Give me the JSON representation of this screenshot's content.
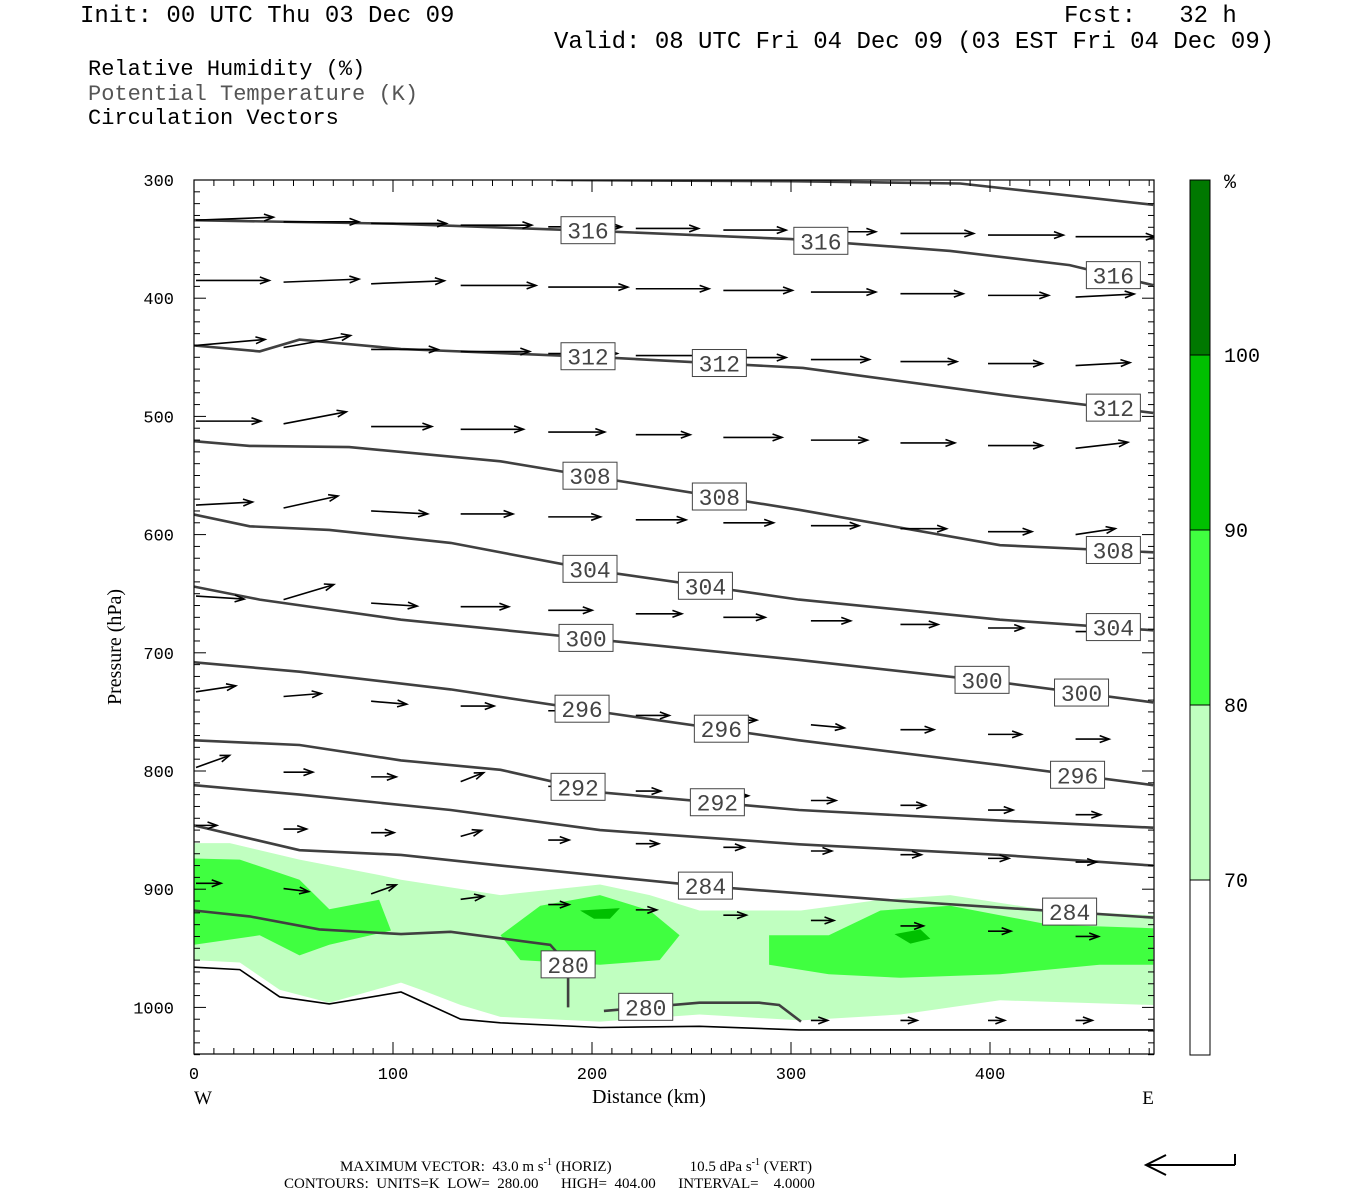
{
  "header": {
    "init": "Init: 00 UTC Thu 03 Dec 09",
    "fcst": "Fcst:   32 h",
    "valid": "Valid: 08 UTC Fri 04 Dec 09 (03 EST Fri 04 Dec 09)"
  },
  "legend": {
    "rh": "Relative Humidity (%)",
    "theta": "Potential Temperature (K)",
    "vectors": "Circulation Vectors"
  },
  "footer": {
    "max_vector_label": "MAXIMUM VECTOR:",
    "horiz": "43.0 m s",
    "horiz_tag": "(HORIZ)",
    "vert": "10.5 dPa s",
    "vert_tag": "(VERT)",
    "exp": "-1",
    "contours": "CONTOURS:  UNITS=K  LOW=  280.00      HIGH=  404.00      INTERVAL=    4.0000"
  },
  "chart_data": {
    "type": "cross-section",
    "xlabel": "Distance (km)",
    "ylabel": "Pressure (hPa)",
    "xlim": [
      0,
      482
    ],
    "ylim": [
      1040,
      300
    ],
    "xticks": [
      0,
      100,
      200,
      300,
      400
    ],
    "yticks": [
      300,
      400,
      500,
      600,
      700,
      800,
      900,
      1000
    ],
    "x_end_labels": {
      "left": "W",
      "right": "E"
    },
    "colorbar": {
      "unit": "%",
      "levels": [
        70,
        80,
        90,
        100
      ],
      "colors": [
        "#ffffff",
        "#c0ffc0",
        "#40ff40",
        "#00c000",
        "#007800"
      ]
    },
    "rh_regions": [
      {
        "level": 70,
        "points": [
          [
            0,
            861
          ],
          [
            18,
            861
          ],
          [
            53,
            875
          ],
          [
            93,
            888
          ],
          [
            104,
            892
          ],
          [
            154,
            905
          ],
          [
            204,
            896
          ],
          [
            229,
            905
          ],
          [
            254,
            918
          ],
          [
            305,
            918
          ],
          [
            345,
            909
          ],
          [
            380,
            905
          ],
          [
            430,
            918
          ],
          [
            482,
            922
          ],
          [
            482,
            998
          ],
          [
            405,
            994
          ],
          [
            355,
            1006
          ],
          [
            305,
            1011
          ],
          [
            254,
            1006
          ],
          [
            204,
            1012
          ],
          [
            154,
            1008
          ],
          [
            134,
            998
          ],
          [
            114,
            985
          ],
          [
            104,
            979
          ],
          [
            68,
            996
          ],
          [
            43,
            985
          ],
          [
            23,
            962
          ],
          [
            0,
            960
          ]
        ]
      },
      {
        "level": 80,
        "points": [
          [
            0,
            874
          ],
          [
            23,
            875
          ],
          [
            53,
            892
          ],
          [
            68,
            917
          ],
          [
            93,
            909
          ],
          [
            99,
            935
          ],
          [
            68,
            947
          ],
          [
            53,
            956
          ],
          [
            33,
            939
          ],
          [
            0,
            947
          ]
        ]
      },
      {
        "level": 80,
        "points": [
          [
            154,
            939
          ],
          [
            174,
            914
          ],
          [
            204,
            905
          ],
          [
            229,
            918
          ],
          [
            244,
            939
          ],
          [
            234,
            960
          ],
          [
            204,
            964
          ],
          [
            164,
            960
          ]
        ]
      },
      {
        "level": 80,
        "points": [
          [
            289,
            939
          ],
          [
            319,
            939
          ],
          [
            345,
            918
          ],
          [
            380,
            914
          ],
          [
            430,
            930
          ],
          [
            482,
            933
          ],
          [
            482,
            964
          ],
          [
            455,
            964
          ],
          [
            405,
            972
          ],
          [
            355,
            975
          ],
          [
            319,
            972
          ],
          [
            289,
            964
          ]
        ]
      },
      {
        "level": 90,
        "points": [
          [
            194,
            918
          ],
          [
            214,
            916
          ],
          [
            209,
            925
          ],
          [
            201,
            925
          ]
        ]
      },
      {
        "level": 90,
        "points": [
          [
            352,
            938
          ],
          [
            365,
            934
          ],
          [
            370,
            942
          ],
          [
            360,
            946
          ]
        ]
      }
    ],
    "theta_contours": [
      {
        "value": 320,
        "labels_at": [],
        "points": [
          [
            182,
            300
          ],
          [
            300,
            301
          ],
          [
            385,
            303
          ],
          [
            482,
            321
          ]
        ]
      },
      {
        "value": 316,
        "labels_at": [
          198,
          315,
          462
        ],
        "points": [
          [
            0,
            334
          ],
          [
            100,
            337
          ],
          [
            200,
            343
          ],
          [
            300,
            350
          ],
          [
            380,
            360
          ],
          [
            440,
            372
          ],
          [
            482,
            389
          ]
        ]
      },
      {
        "value": 312,
        "labels_at": [
          198,
          264,
          462
        ],
        "points": [
          [
            0,
            440
          ],
          [
            33,
            445
          ],
          [
            53,
            435
          ],
          [
            104,
            443
          ],
          [
            205,
            450
          ],
          [
            306,
            459
          ],
          [
            407,
            482
          ],
          [
            482,
            497
          ]
        ]
      },
      {
        "value": 308,
        "labels_at": [
          199,
          264,
          462
        ],
        "points": [
          [
            0,
            521
          ],
          [
            28,
            525
          ],
          [
            78,
            526
          ],
          [
            154,
            538
          ],
          [
            204,
            552
          ],
          [
            304,
            579
          ],
          [
            405,
            609
          ],
          [
            482,
            615
          ]
        ]
      },
      {
        "value": 304,
        "labels_at": [
          199,
          257,
          462
        ],
        "points": [
          [
            0,
            583
          ],
          [
            28,
            593
          ],
          [
            68,
            596
          ],
          [
            129,
            607
          ],
          [
            204,
            631
          ],
          [
            304,
            655
          ],
          [
            405,
            672
          ],
          [
            482,
            681
          ]
        ]
      },
      {
        "value": 300,
        "labels_at": [
          197,
          396,
          446
        ],
        "points": [
          [
            0,
            644
          ],
          [
            33,
            655
          ],
          [
            104,
            672
          ],
          [
            204,
            689
          ],
          [
            304,
            706
          ],
          [
            405,
            725
          ],
          [
            482,
            742
          ]
        ]
      },
      {
        "value": 296,
        "labels_at": [
          195,
          265,
          444
        ],
        "points": [
          [
            0,
            708
          ],
          [
            53,
            716
          ],
          [
            129,
            731
          ],
          [
            204,
            750
          ],
          [
            304,
            774
          ],
          [
            405,
            795
          ],
          [
            482,
            812
          ]
        ]
      },
      {
        "value": 292,
        "labels_at": [
          193,
          263
        ],
        "points": [
          [
            0,
            774
          ],
          [
            53,
            778
          ],
          [
            104,
            791
          ],
          [
            154,
            799
          ],
          [
            204,
            818
          ],
          [
            304,
            833
          ],
          [
            405,
            842
          ],
          [
            482,
            848
          ]
        ]
      },
      {
        "value": 288,
        "labels_at": [],
        "points": [
          [
            0,
            812
          ],
          [
            53,
            820
          ],
          [
            129,
            833
          ],
          [
            204,
            850
          ],
          [
            304,
            862
          ],
          [
            405,
            871
          ],
          [
            482,
            880
          ]
        ]
      },
      {
        "value": 284,
        "labels_at": [
          257,
          440
        ],
        "points": [
          [
            0,
            846
          ],
          [
            53,
            867
          ],
          [
            104,
            871
          ],
          [
            154,
            880
          ],
          [
            254,
            897
          ],
          [
            355,
            910
          ],
          [
            482,
            924
          ]
        ]
      },
      {
        "value": 280,
        "labels_at": [
          188
        ],
        "points": [
          [
            0,
            918
          ],
          [
            28,
            923
          ],
          [
            63,
            934
          ],
          [
            104,
            938
          ],
          [
            129,
            936
          ],
          [
            179,
            947
          ],
          [
            188,
            964
          ],
          [
            188,
            1000
          ]
        ]
      },
      {
        "value": 280,
        "labels_at": [
          227
        ],
        "points": [
          [
            206,
            1003
          ],
          [
            254,
            996
          ],
          [
            284,
            996
          ],
          [
            294,
            998
          ],
          [
            305,
            1012
          ]
        ]
      }
    ],
    "terrain": [
      [
        0,
        966
      ],
      [
        23,
        968
      ],
      [
        43,
        991
      ],
      [
        68,
        997
      ],
      [
        104,
        987
      ],
      [
        134,
        1010
      ],
      [
        154,
        1013
      ],
      [
        204,
        1017
      ],
      [
        254,
        1016
      ],
      [
        304,
        1019
      ],
      [
        482,
        1019
      ]
    ],
    "vector_columns_km": [
      0,
      44,
      88,
      133,
      177,
      221,
      265,
      309,
      354,
      398,
      442
    ],
    "vector_rows": [
      {
        "p_west": 334,
        "p_east": 348,
        "u": [
          37,
          36,
          36,
          34,
          35,
          30,
          30,
          31,
          35,
          36,
          38
        ],
        "w": [
          1,
          0,
          0,
          0,
          0,
          0,
          0,
          0,
          0,
          0,
          0
        ]
      },
      {
        "p_west": 385,
        "p_east": 399,
        "u": [
          35,
          36,
          35,
          36,
          38,
          35,
          33,
          31,
          30,
          29,
          28
        ],
        "w": [
          0,
          1,
          1,
          0,
          0,
          0,
          0,
          0,
          0,
          0,
          1
        ]
      },
      {
        "p_west": 440,
        "p_east": 457,
        "u": [
          33,
          32,
          32,
          33,
          33,
          33,
          30,
          28,
          27,
          26,
          26
        ],
        "w": [
          2,
          4,
          0,
          0,
          0,
          0,
          0,
          0,
          0,
          0,
          1
        ]
      },
      {
        "p_west": 504,
        "p_east": 527,
        "u": [
          31,
          30,
          29,
          30,
          27,
          26,
          28,
          27,
          26,
          26,
          25
        ],
        "w": [
          0,
          4,
          0,
          0,
          0,
          0,
          0,
          0,
          0,
          0,
          2
        ]
      },
      {
        "p_west": 575,
        "p_east": 600,
        "u": [
          27,
          26,
          27,
          25,
          25,
          24,
          24,
          23,
          22,
          21,
          19
        ],
        "w": [
          1,
          4,
          -1,
          0,
          0,
          0,
          0,
          0,
          0,
          0,
          2
        ]
      },
      {
        "p_west": 652,
        "p_east": 682,
        "u": [
          23,
          24,
          22,
          23,
          21,
          22,
          20,
          19,
          18,
          17,
          16
        ],
        "w": [
          -1,
          5,
          -1,
          0,
          0,
          0,
          0,
          0,
          0,
          0,
          0
        ]
      },
      {
        "p_west": 733,
        "p_east": 773,
        "u": [
          19,
          18,
          17,
          16,
          16,
          16,
          16,
          16,
          16,
          16,
          16
        ],
        "w": [
          2,
          1,
          -1,
          0,
          0,
          0,
          0,
          -1,
          0,
          0,
          0
        ]
      },
      {
        "p_west": 797,
        "p_east": 837,
        "u": [
          16,
          14,
          12,
          11,
          12,
          12,
          12,
          12,
          12,
          12,
          12
        ],
        "w": [
          4,
          0,
          0,
          3,
          0,
          0,
          0,
          0,
          0,
          0,
          0
        ]
      },
      {
        "p_west": 846,
        "p_east": 877,
        "u": [
          10,
          11,
          11,
          10,
          10,
          11,
          10,
          10,
          10,
          10,
          10
        ],
        "w": [
          0,
          0,
          0,
          2,
          0,
          0,
          0,
          0,
          0,
          0,
          0
        ]
      },
      {
        "p_west": 895,
        "p_east": 940,
        "u": [
          12,
          12,
          12,
          11,
          10,
          10,
          11,
          11,
          11,
          11,
          11
        ],
        "w": [
          0,
          -1,
          3,
          1,
          0,
          0,
          0,
          0,
          0,
          0,
          0
        ]
      },
      {
        "p_west": 1011,
        "p_east": 1011,
        "u": [
          null,
          null,
          null,
          null,
          null,
          null,
          null,
          8,
          8,
          8,
          8
        ],
        "w": [
          0,
          0,
          0,
          0,
          0,
          0,
          0,
          0,
          0,
          0,
          0
        ]
      }
    ],
    "reference_vector_ms": 43.0
  }
}
